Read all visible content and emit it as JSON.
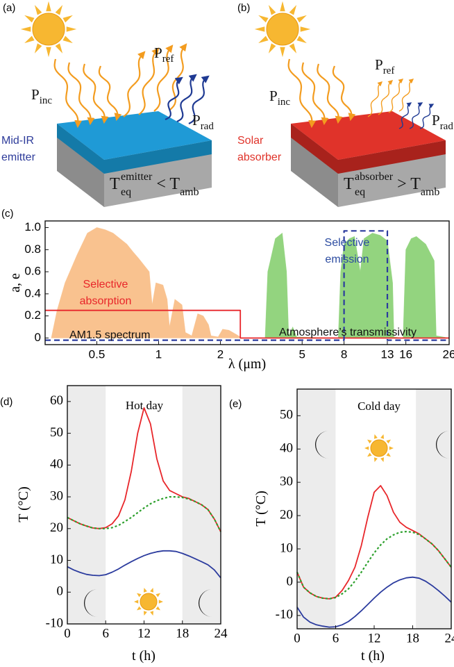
{
  "diagrams": [
    {
      "panel_label": "(a)",
      "incident": {
        "symbol": "P",
        "subscript": "inc"
      },
      "reflected": {
        "symbol": "P",
        "subscript": "ref"
      },
      "radiated": {
        "symbol": "P",
        "subscript": "rad"
      },
      "material": [
        "Mid-IR",
        "emitter"
      ],
      "temperature": {
        "symbol": "T",
        "subscript": "eq",
        "superscript": "emitter",
        "relation": "< T",
        "relation_subscript": "amb"
      }
    },
    {
      "panel_label": "(b)",
      "incident": {
        "symbol": "P",
        "subscript": "inc"
      },
      "reflected": {
        "symbol": "P",
        "subscript": "ref"
      },
      "radiated": {
        "symbol": "P",
        "subscript": "rad"
      },
      "material": [
        "Solar",
        "absorber"
      ],
      "temperature": {
        "symbol": "T",
        "subscript": "eq",
        "superscript": "absorber",
        "relation": "> T",
        "relation_subscript": "amb"
      }
    }
  ],
  "chart_data": [
    {
      "type": "line",
      "panel_label": "(c)",
      "xlabel": "λ (μm)",
      "ylabel": "a, e",
      "xscale": "log",
      "xlim": [
        0.28,
        26
      ],
      "xticks": [
        0.5,
        1,
        2,
        5,
        8,
        13,
        16,
        26
      ],
      "ylim": [
        -0.06,
        1.06
      ],
      "yticks": [
        0,
        0.2,
        0.4,
        0.6,
        0.8,
        {
          "value": 1,
          "label": "1.0"
        }
      ],
      "series": [
        {
          "color": "#f9c28f",
          "fill": true,
          "x": [
            0.3,
            0.32,
            0.35,
            0.4,
            0.45,
            0.5,
            0.55,
            0.6,
            0.7,
            0.75,
            0.8,
            0.9,
            0.93,
            0.97,
            1.05,
            1.1,
            1.13,
            1.2,
            1.3,
            1.35,
            1.45,
            1.55,
            1.65,
            1.75,
            1.8,
            1.95,
            2.05,
            2.2,
            2.4,
            2.5
          ],
          "values": [
            0,
            0.25,
            0.5,
            0.75,
            0.95,
            1.0,
            0.98,
            0.95,
            0.85,
            0.78,
            0.72,
            0.6,
            0.3,
            0.5,
            0.48,
            0.35,
            0.1,
            0.35,
            0.3,
            0.05,
            0.02,
            0.22,
            0.2,
            0.12,
            0.02,
            0.01,
            0.08,
            0.07,
            0.03,
            0.01
          ]
        },
        {
          "color": "#93d47f",
          "fill": true,
          "x": [
            3.3,
            3.4,
            3.5,
            3.7,
            4.0,
            4.2,
            4.3,
            4.5,
            4.7,
            7.5,
            7.7,
            8,
            8.5,
            9,
            9.6,
            10,
            11,
            12,
            13,
            13.8,
            14,
            15.5,
            16,
            17,
            18,
            20,
            22,
            22.5,
            26
          ],
          "values": [
            0,
            0.6,
            0.7,
            0.9,
            0.95,
            0.6,
            0.02,
            0.1,
            0.01,
            0,
            0.6,
            0.85,
            0.9,
            0.92,
            0.6,
            0.9,
            0.95,
            0.93,
            0.88,
            0.5,
            0.01,
            0,
            0.8,
            0.9,
            0.92,
            0.85,
            0.7,
            0.02,
            0
          ]
        },
        {
          "color": "#e8262a",
          "x": [
            0.28,
            2.5,
            2.5,
            26
          ],
          "values": [
            0.25,
            0.25,
            0,
            0
          ]
        },
        {
          "color": "#2b3b9e",
          "dash": true,
          "x": [
            0.28,
            8,
            8,
            13,
            13,
            26
          ],
          "values": [
            -0.02,
            -0.02,
            0.97,
            0.97,
            -0.02,
            -0.02
          ]
        }
      ],
      "annotations": [
        {
          "lines": [
            "Selective",
            "absorption"
          ],
          "color": "#e8262a"
        },
        {
          "lines": [
            "Selective",
            "emission"
          ],
          "color": "#2b4ba0"
        },
        {
          "lines": [
            "AM1.5 spectrum"
          ],
          "color": "#111111"
        },
        {
          "lines": [
            "Atmosphere’s transmissivity"
          ],
          "color": "#111111"
        }
      ]
    },
    {
      "type": "line",
      "panel_label": "(d)",
      "title": "Hot day",
      "xlabel": "t (h)",
      "ylabel": "T (°C)",
      "xlim": [
        0,
        24
      ],
      "xticks": [
        0,
        6,
        12,
        18,
        24
      ],
      "ylim": [
        -10,
        65
      ],
      "yticks": [
        -10,
        0,
        10,
        20,
        30,
        40,
        50,
        60
      ],
      "shaded": [
        [
          0,
          6
        ],
        [
          18,
          24
        ]
      ],
      "x": [
        0,
        1,
        2,
        3,
        4,
        5,
        6,
        7,
        8,
        9,
        10,
        11,
        12,
        13,
        14,
        15,
        16,
        17,
        18,
        19,
        20,
        21,
        22,
        23,
        24
      ],
      "series": [
        {
          "color": "#e8262a",
          "values": [
            23.5,
            22.5,
            21.5,
            20.8,
            20.2,
            20,
            20.3,
            21.5,
            24,
            29,
            38,
            50,
            58,
            53,
            42,
            35,
            32,
            31,
            30,
            29.5,
            28.5,
            27.5,
            26,
            23,
            19
          ]
        },
        {
          "color": "#2ca02c",
          "dash": true,
          "values": [
            23.5,
            22.5,
            21.5,
            20.8,
            20.2,
            20,
            20,
            20.3,
            21,
            22.2,
            23.5,
            25,
            26.5,
            27.8,
            28.8,
            29.5,
            30,
            30,
            29.8,
            29.3,
            28.5,
            27.5,
            26,
            23,
            19
          ]
        },
        {
          "color": "#2b3b9e",
          "values": [
            8,
            7,
            6.2,
            5.6,
            5.3,
            5.2,
            5.5,
            6.3,
            7.3,
            8.5,
            9.6,
            10.6,
            11.5,
            12.2,
            12.7,
            13,
            13,
            12.8,
            12.2,
            11.4,
            10.5,
            9.6,
            8.6,
            7,
            4.5
          ]
        }
      ]
    },
    {
      "type": "line",
      "panel_label": "(e)",
      "title": "Cold day",
      "xlabel": "t (h)",
      "ylabel": "T (°C)",
      "xlim": [
        0,
        24
      ],
      "xticks": [
        0,
        6,
        12,
        18,
        24
      ],
      "ylim": [
        -14,
        58
      ],
      "yticks": [
        -10,
        0,
        10,
        20,
        30,
        40,
        50
      ],
      "shaded": [
        [
          0,
          6
        ],
        [
          18.5,
          24
        ]
      ],
      "x": [
        0,
        1,
        2,
        3,
        4,
        5,
        6,
        7,
        8,
        9,
        10,
        11,
        12,
        13,
        14,
        15,
        16,
        17,
        18,
        19,
        20,
        21,
        22,
        23,
        24
      ],
      "series": [
        {
          "color": "#e8262a",
          "values": [
            3,
            -1.5,
            -3.2,
            -4.3,
            -4.8,
            -5,
            -4.5,
            -2.5,
            0.5,
            4.5,
            11,
            19.5,
            27,
            29,
            26,
            21,
            18,
            16.5,
            15.5,
            14.5,
            13,
            11.5,
            9.5,
            7,
            4.5
          ]
        },
        {
          "color": "#2ca02c",
          "dash": true,
          "values": [
            3,
            -1.5,
            -3.2,
            -4.3,
            -4.8,
            -5,
            -4.6,
            -3.5,
            -2,
            0.3,
            3,
            6,
            8.8,
            11.2,
            13,
            14.2,
            15,
            15.2,
            15,
            14.3,
            13,
            11.5,
            9.5,
            7,
            4.5
          ]
        },
        {
          "color": "#2b3b9e",
          "values": [
            -7.5,
            -10.5,
            -12,
            -12.8,
            -13.2,
            -13.5,
            -13.4,
            -12.8,
            -11.8,
            -10.3,
            -8.6,
            -6.7,
            -4.8,
            -3,
            -1.5,
            -0.2,
            0.7,
            1.3,
            1.5,
            1.2,
            0.3,
            -1,
            -2.5,
            -4.2,
            -6
          ]
        }
      ]
    }
  ]
}
